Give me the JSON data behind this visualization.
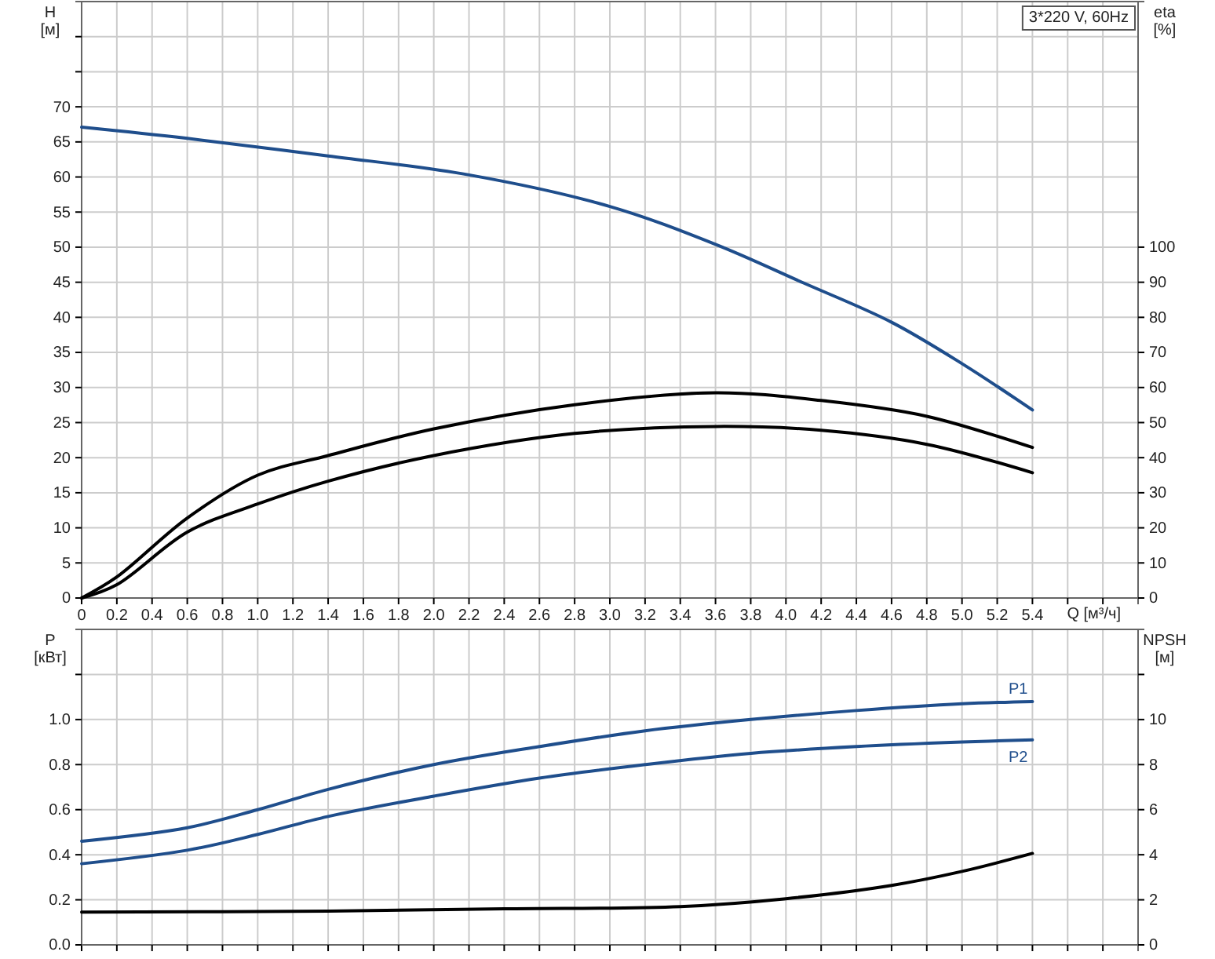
{
  "chart_data": [
    {
      "type": "line",
      "xlabel": "Q [м³/ч]",
      "ylabel": "H [м]",
      "y2label": "eta [%]",
      "annotations": [
        "3*220 V, 60Hz"
      ],
      "grid": true,
      "xlim": [
        0,
        6
      ],
      "xticks": [
        0,
        0.2,
        0.4,
        0.6,
        0.8,
        {
          "value": 1,
          "label": "1.0"
        },
        1.2,
        1.4,
        1.6,
        1.8,
        {
          "value": 2,
          "label": "2.0"
        },
        2.2,
        2.4,
        2.6,
        2.8,
        {
          "value": 3,
          "label": "3.0"
        },
        3.2,
        3.4,
        3.6,
        3.8,
        {
          "value": 4,
          "label": "4.0"
        },
        4.2,
        4.4,
        4.6,
        4.8,
        {
          "value": 5,
          "label": "5.0"
        },
        5.2,
        5.4,
        {
          "value": 5.6,
          "label": null
        },
        {
          "value": 5.8,
          "label": null
        }
      ],
      "ylim": [
        0,
        85
      ],
      "yticks": [
        0,
        5,
        10,
        15,
        20,
        25,
        30,
        35,
        40,
        45,
        50,
        55,
        60,
        65,
        70,
        {
          "value": 75,
          "label": null
        },
        {
          "value": 80,
          "label": null
        }
      ],
      "y2lim": [
        0,
        170
      ],
      "y2ticks": [
        0,
        10,
        20,
        30,
        40,
        50,
        60,
        70,
        80,
        90,
        100
      ],
      "series": [
        {
          "color": "#1f4e8c",
          "x": [
            0,
            0.6,
            1.4,
            2.2,
            3.0,
            3.6,
            4.1,
            4.6,
            5.0,
            5.4
          ],
          "values": [
            67.1,
            65.5,
            63.0,
            60.3,
            55.8,
            50.4,
            44.9,
            39.3,
            33.4,
            26.8
          ]
        },
        {
          "color": "#000000",
          "axis": "y2",
          "x": [
            0,
            0.2,
            0.6,
            1.0,
            1.4,
            2.0,
            2.8,
            3.6,
            4.2,
            4.8,
            5.4
          ],
          "values": [
            0,
            6,
            22.8,
            35,
            40.6,
            48.2,
            55.1,
            58.5,
            56.3,
            51.8,
            42.9
          ]
        },
        {
          "color": "#000000",
          "axis": "y2",
          "x": [
            0,
            0.2,
            0.6,
            1.0,
            1.4,
            2.0,
            2.8,
            3.6,
            4.2,
            4.8,
            5.4
          ],
          "values": [
            0,
            3.8,
            18.8,
            26.8,
            33.3,
            40.6,
            46.9,
            48.9,
            47.8,
            43.8,
            35.7
          ]
        }
      ]
    },
    {
      "type": "line",
      "ylabel": "P [кВт]",
      "y2label": "NPSH [м]",
      "grid": true,
      "tick_labels": "y",
      "xlim": [
        0,
        6
      ],
      "xticks": [
        0,
        0.2,
        0.4,
        0.6,
        0.8,
        1.0,
        1.2,
        1.4,
        1.6,
        1.8,
        2.0,
        2.2,
        2.4,
        2.6,
        2.8,
        3.0,
        3.2,
        3.4,
        3.6,
        3.8,
        4.0,
        4.2,
        4.4,
        4.6,
        4.8,
        5.0,
        5.2,
        5.4,
        5.6,
        5.8
      ],
      "ylim": [
        0,
        1.4
      ],
      "yticks": [
        {
          "value": 0,
          "label": "0.0"
        },
        0.2,
        0.4,
        0.6,
        0.8,
        {
          "value": 1,
          "label": "1.0"
        },
        {
          "value": 1.2,
          "label": null
        }
      ],
      "y2lim": [
        0,
        14
      ],
      "y2ticks": [
        0,
        2,
        4,
        6,
        8,
        10,
        {
          "value": 12,
          "label": null
        }
      ],
      "series": [
        {
          "name": "P1",
          "color": "#1f4e8c",
          "x": [
            0,
            0.6,
            1.0,
            1.4,
            2.0,
            2.6,
            3.2,
            3.8,
            4.4,
            5.0,
            5.4
          ],
          "values": [
            0.46,
            0.52,
            0.6,
            0.69,
            0.8,
            0.88,
            0.95,
            1.0,
            1.04,
            1.07,
            1.08
          ]
        },
        {
          "name": "P2",
          "color": "#1f4e8c",
          "x": [
            0,
            0.6,
            1.0,
            1.4,
            2.0,
            2.6,
            3.2,
            3.8,
            4.4,
            5.0,
            5.4
          ],
          "values": [
            0.36,
            0.42,
            0.49,
            0.57,
            0.66,
            0.74,
            0.8,
            0.85,
            0.88,
            0.9,
            0.91
          ]
        },
        {
          "color": "#000000",
          "axis": "y2",
          "x": [
            0,
            1.4,
            2.4,
            3.4,
            4.0,
            4.6,
            5.0,
            5.4
          ],
          "values": [
            1.45,
            1.5,
            1.6,
            1.7,
            2.05,
            2.64,
            3.26,
            4.06
          ]
        }
      ]
    }
  ]
}
